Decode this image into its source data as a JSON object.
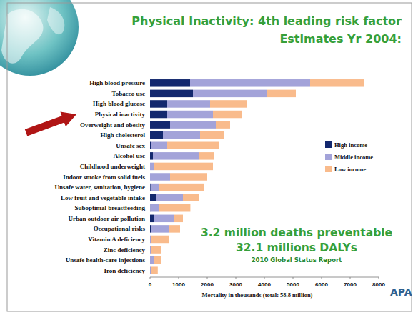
{
  "chart_data": {
    "type": "bar",
    "orientation": "horizontal",
    "stacked": true,
    "title": "Physical Inactivity: 4th leading risk factor",
    "subtitle": "Estimates Yr 2004:",
    "x_label": "Mortality in thousands (total: 58.8 million)",
    "categories": [
      "High blood pressure",
      "Tobacco use",
      "High blood glucose",
      "Physical inactivity",
      "Overweight and obesity",
      "High cholesterol",
      "Unsafe sex",
      "Alcohol use",
      "Childhood underweight",
      "Indoor smoke from solid fuels",
      "Unsafe water, sanitation, hygiene",
      "Low fruit and vegetable intake",
      "Suboptimal breastfeeding",
      "Urban outdoor air pollution",
      "Occupational risks",
      "Vitamin A deficiency",
      "Zinc deficiency",
      "Unsafe health-care injections",
      "Iron deficiency"
    ],
    "series": [
      {
        "name": "High income",
        "color": "#13286e",
        "values": [
          1400,
          1500,
          600,
          600,
          700,
          450,
          50,
          100,
          0,
          0,
          20,
          200,
          10,
          150,
          50,
          0,
          0,
          0,
          0
        ]
      },
      {
        "name": "Middle income",
        "color": "#a3a3d9",
        "values": [
          4200,
          2600,
          1500,
          1600,
          1600,
          1300,
          550,
          1600,
          150,
          700,
          300,
          950,
          300,
          700,
          600,
          50,
          50,
          150,
          50
        ]
      },
      {
        "name": "Low income",
        "color": "#f9bb8c",
        "values": [
          1900,
          1000,
          1300,
          1000,
          500,
          850,
          1800,
          550,
          2050,
          1300,
          1580,
          550,
          1100,
          300,
          400,
          600,
          350,
          250,
          220
        ]
      }
    ],
    "xlim": [
      0,
      8000
    ],
    "xticks": [
      0,
      1000,
      2000,
      3000,
      4000,
      5000,
      6000,
      7000,
      8000
    ],
    "grid": false,
    "legend": "right",
    "annotations": [
      "3.2 million deaths preventable",
      "32.1 millions DALYs",
      "2010 Global Status Report",
      "APA"
    ]
  }
}
